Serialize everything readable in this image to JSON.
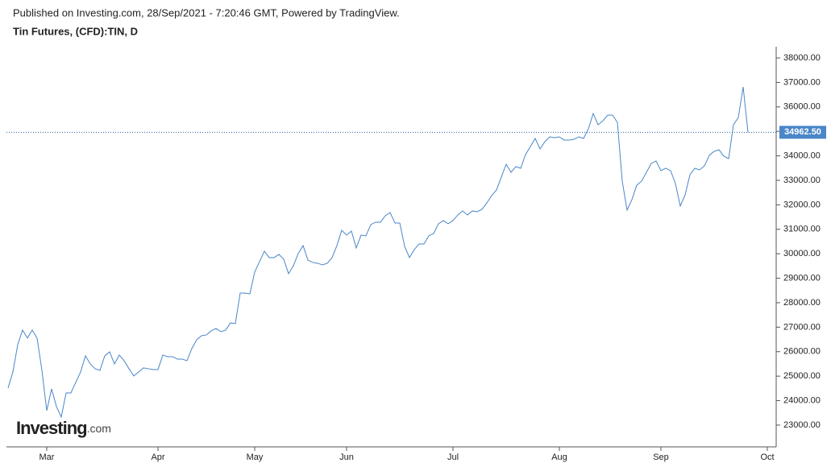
{
  "header": {
    "published": "Published on Investing.com, 28/Sep/2021 - 7:20:46 GMT, Powered by TradingView.",
    "symbol": "Tin Futures, (CFD):TIN, D"
  },
  "logo": {
    "name": "Investing",
    "suffix": ".com"
  },
  "chart_data": {
    "type": "line",
    "categories": [
      null,
      null,
      null,
      null,
      null,
      null,
      null,
      null,
      "Mar",
      null,
      null,
      null,
      null,
      null,
      null,
      null,
      null,
      null,
      null,
      null,
      null,
      null,
      null,
      null,
      null,
      null,
      null,
      null,
      null,
      null,
      null,
      "Apr",
      null,
      null,
      null,
      null,
      null,
      null,
      null,
      null,
      null,
      null,
      null,
      null,
      null,
      null,
      null,
      null,
      null,
      null,
      null,
      "May",
      null,
      null,
      null,
      null,
      null,
      null,
      null,
      null,
      null,
      null,
      null,
      null,
      null,
      null,
      null,
      null,
      null,
      null,
      "Jun",
      null,
      null,
      null,
      null,
      null,
      null,
      null,
      null,
      null,
      null,
      null,
      null,
      null,
      null,
      null,
      null,
      null,
      null,
      null,
      null,
      null,
      "Jul",
      null,
      null,
      null,
      null,
      null,
      null,
      null,
      null,
      null,
      null,
      null,
      null,
      null,
      null,
      null,
      null,
      null,
      null,
      null,
      null,
      null,
      "Aug",
      null,
      null,
      null,
      null,
      null,
      null,
      null,
      null,
      null,
      null,
      null,
      null,
      null,
      null,
      null,
      null,
      null,
      null,
      null,
      null,
      "Sep",
      null,
      null,
      null,
      null,
      null,
      null,
      null,
      null,
      null,
      null,
      null,
      null,
      null,
      null,
      null,
      null,
      null,
      null,
      null,
      null,
      null,
      "Oct"
    ],
    "series": [
      {
        "name": "Tin Futures",
        "color": "#4a86c8",
        "values": [
          24513,
          25171,
          26289,
          26882,
          26553,
          26882,
          26553,
          25237,
          23592,
          24480,
          23757,
          23329,
          24316,
          24316,
          24743,
          25171,
          25829,
          25500,
          25303,
          25237,
          25829,
          25993,
          25500,
          25862,
          25632,
          25303,
          25007,
          25171,
          25336,
          25303,
          25270,
          25270,
          25862,
          25796,
          25796,
          25697,
          25697,
          25632,
          26125,
          26487,
          26651,
          26684,
          26849,
          26947,
          26816,
          26882,
          27178,
          27145,
          28395,
          28395,
          28362,
          29250,
          29678,
          30105,
          29842,
          29842,
          29974,
          29776,
          29184,
          29513,
          30007,
          30336,
          29743,
          29645,
          29612,
          29546,
          29612,
          29842,
          30336,
          30961,
          30763,
          30928,
          30237,
          30763,
          30730,
          31191,
          31289,
          31289,
          31553,
          31684,
          31257,
          31257,
          30303,
          29842,
          30171,
          30401,
          30401,
          30730,
          30829,
          31224,
          31355,
          31224,
          31355,
          31586,
          31750,
          31586,
          31750,
          31717,
          31816,
          32079,
          32375,
          32605,
          33132,
          33658,
          33329,
          33559,
          33493,
          34053,
          34382,
          34711,
          34283,
          34579,
          34776,
          34743,
          34776,
          34645,
          34645,
          34678,
          34776,
          34711,
          35105,
          35730,
          35270,
          35434,
          35664,
          35664,
          35368,
          32967,
          31783,
          32211,
          32803,
          32967,
          33329,
          33691,
          33789,
          33395,
          33493,
          33395,
          32868,
          31947,
          32408,
          33230,
          33493,
          33428,
          33592,
          34020,
          34184,
          34250,
          33987,
          33888,
          35270,
          35566,
          36816,
          34962.5,
          null,
          null,
          null,
          null
        ]
      }
    ],
    "last_value": 34962.5,
    "last_value_label": "34962.50",
    "ylim": [
      22110,
      38460
    ],
    "yticks": [
      {
        "value": 23000,
        "label": "23000.00"
      },
      {
        "value": 24000,
        "label": "24000.00"
      },
      {
        "value": 25000,
        "label": "25000.00"
      },
      {
        "value": 26000,
        "label": "26000.00"
      },
      {
        "value": 27000,
        "label": "27000.00"
      },
      {
        "value": 28000,
        "label": "28000.00"
      },
      {
        "value": 29000,
        "label": "29000.00"
      },
      {
        "value": 30000,
        "label": "30000.00"
      },
      {
        "value": 31000,
        "label": "31000.00"
      },
      {
        "value": 32000,
        "label": "32000.00"
      },
      {
        "value": 33000,
        "label": "33000.00"
      },
      {
        "value": 34000,
        "label": "34000.00"
      },
      {
        "value": 35000,
        "label": "35000.00"
      },
      {
        "value": 36000,
        "label": "36000.00"
      },
      {
        "value": 37000,
        "label": "37000.00"
      },
      {
        "value": 38000,
        "label": "38000.00"
      }
    ]
  }
}
